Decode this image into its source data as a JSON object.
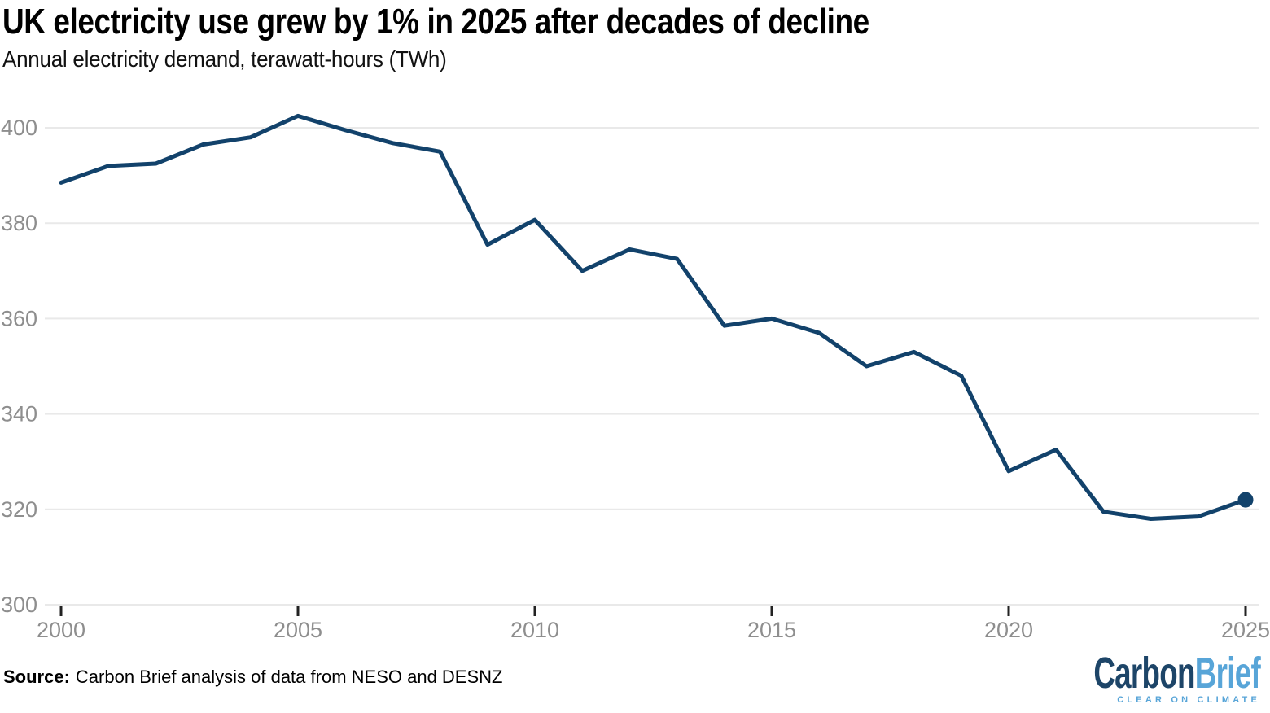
{
  "header": {
    "title": "UK electricity use grew by 1% in 2025 after decades of decline",
    "subtitle": "Annual electricity demand, terawatt-hours (TWh)"
  },
  "chart_data": {
    "type": "line",
    "title": "UK electricity use grew by 1% in 2025 after decades of decline",
    "subtitle": "Annual electricity demand, terawatt-hours (TWh)",
    "xlabel": "",
    "ylabel": "terawatt-hours (TWh)",
    "x": [
      2000,
      2001,
      2002,
      2003,
      2004,
      2005,
      2006,
      2007,
      2008,
      2009,
      2010,
      2011,
      2012,
      2013,
      2014,
      2015,
      2016,
      2017,
      2018,
      2019,
      2020,
      2021,
      2022,
      2023,
      2024,
      2025
    ],
    "values": [
      388.5,
      392,
      392.5,
      396.5,
      398,
      402.5,
      399.5,
      396.8,
      395,
      375.5,
      380.7,
      370,
      374.5,
      372.5,
      358.5,
      360,
      357,
      350,
      353,
      348,
      328,
      332.5,
      319.5,
      318,
      318.5,
      322
    ],
    "ylim": [
      300,
      405
    ],
    "yticks": [
      300,
      320,
      340,
      360,
      380,
      400
    ],
    "xticks": [
      2000,
      2005,
      2010,
      2015,
      2020,
      2025
    ],
    "grid": true,
    "legend": "none",
    "endpoint_marker": {
      "year": 2025,
      "value": 322
    },
    "colors": {
      "line": "#12426b",
      "grid": "#e9e9e9",
      "axis_labels": "#8e8e8e",
      "tick_marks": "#222222",
      "background": "#ffffff"
    }
  },
  "footer": {
    "source_label": "Source:",
    "source_text": "Carbon Brief analysis of data from NESO and DESNZ",
    "logo": {
      "part1": "Carbon",
      "part2": "Brief",
      "tagline": "CLEAR ON CLIMATE",
      "dark_color": "#1d4568",
      "light_color": "#58a5d8"
    }
  }
}
